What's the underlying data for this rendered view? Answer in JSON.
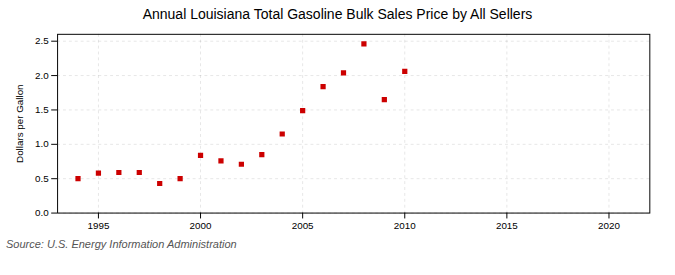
{
  "chart_data": {
    "type": "scatter",
    "title": "Annual Louisiana Total Gasoline Bulk Sales Price by All Sellers",
    "ylabel": "Dollars per Gallon",
    "source": "Source: U.S. Energy Information Administration",
    "x": [
      1994,
      1995,
      1996,
      1997,
      1998,
      1999,
      2000,
      2001,
      2002,
      2003,
      2004,
      2005,
      2006,
      2007,
      2008,
      2009,
      2010
    ],
    "values": [
      0.5,
      0.58,
      0.59,
      0.59,
      0.43,
      0.5,
      0.84,
      0.76,
      0.71,
      0.85,
      1.15,
      1.49,
      1.84,
      2.04,
      2.46,
      1.65,
      2.06
    ],
    "color": "#cc0000",
    "marker": "square",
    "xlim": [
      1993,
      2022
    ],
    "ylim": [
      0.0,
      2.6
    ],
    "xticks": [
      1995,
      2000,
      2005,
      2010,
      2015,
      2020
    ],
    "yticks": [
      {
        "value": 0.0,
        "label": "0.0"
      },
      0.5,
      {
        "value": 1.0,
        "label": "1.0"
      },
      1.5,
      {
        "value": 2.0,
        "label": "2.0"
      },
      2.5
    ],
    "grid": true
  }
}
